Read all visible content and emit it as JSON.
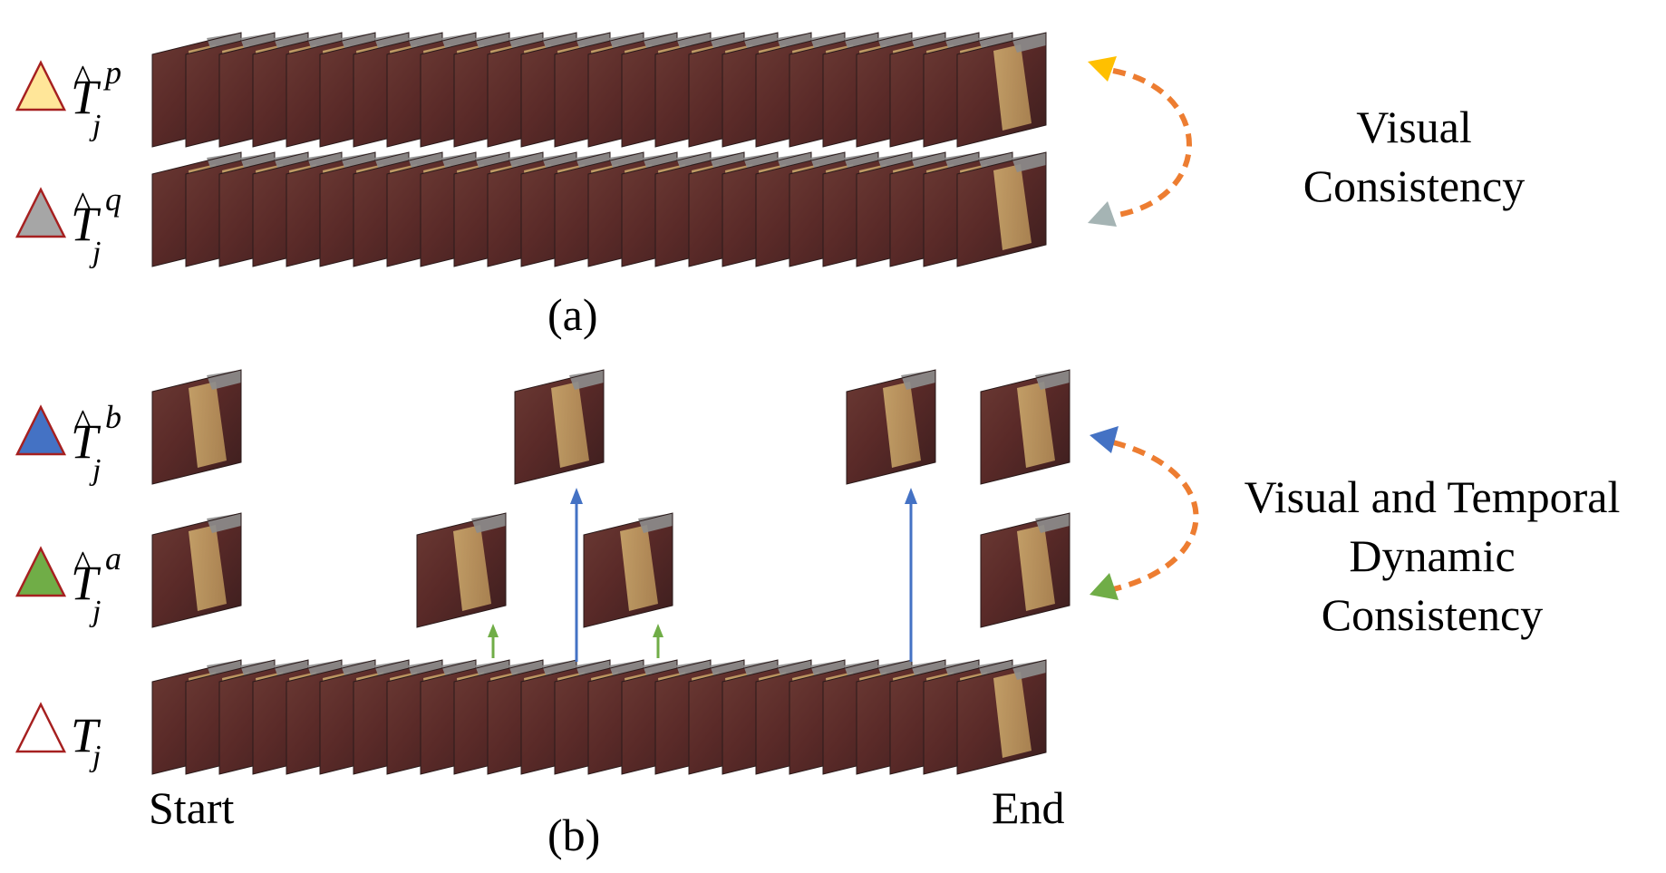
{
  "rows": {
    "tp": {
      "symbol": "T",
      "hat": "^",
      "sup": "p",
      "sub": "j",
      "triangle_fill": "#ffe699",
      "triangle_stroke": "#a62020"
    },
    "tq": {
      "symbol": "T",
      "hat": "^",
      "sup": "q",
      "sub": "j",
      "triangle_fill": "#a6a6a6",
      "triangle_stroke": "#a62020"
    },
    "tb": {
      "symbol": "T",
      "hat": "^",
      "sup": "b",
      "sub": "j",
      "triangle_fill": "#4472c4",
      "triangle_stroke": "#a62020"
    },
    "ta": {
      "symbol": "T",
      "hat": "^",
      "sup": "a",
      "sub": "j",
      "triangle_fill": "#70ad47",
      "triangle_stroke": "#a62020"
    },
    "t": {
      "symbol": "T",
      "hat": "",
      "sup": "",
      "sub": "j",
      "triangle_fill": "#ffffff",
      "triangle_stroke": "#a62020"
    }
  },
  "captions": {
    "visual_line1": "Visual",
    "visual_line2": "Consistency",
    "vt_line1": "Visual and Temporal",
    "vt_line2": "Dynamic",
    "vt_line3": "Consistency",
    "panel_a": "(a)",
    "panel_b": "(b)",
    "start": "Start",
    "end": "End"
  },
  "colors": {
    "dashed_arrow": "#ed7d31",
    "arrowhead_tp": "#ffc000",
    "arrowhead_tq": "#a5b4b4",
    "arrowhead_tb": "#4472c4",
    "arrowhead_ta": "#70ad47",
    "blue_arrow": "#4472c4",
    "green_arrow": "#70ad47"
  },
  "icons": [
    "triangle-marker",
    "surgical-video-frame",
    "dashed-curved-arrow",
    "up-arrow"
  ]
}
